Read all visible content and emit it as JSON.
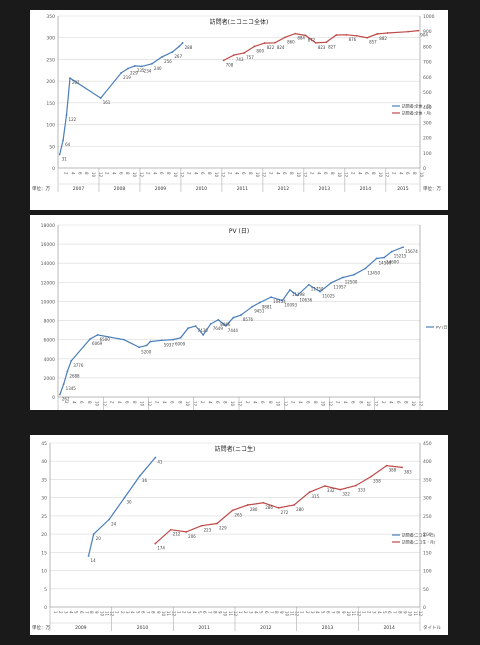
{
  "chart_data": [
    {
      "type": "line",
      "title": "訪問者(ニコニコ全体)",
      "left_axis": {
        "unit_label": "単位：万",
        "min": 0,
        "max": 350,
        "ticks": [
          0,
          50,
          100,
          150,
          200,
          250,
          300,
          350
        ]
      },
      "right_axis": {
        "unit_label": "単位：万",
        "min": 0,
        "max": 1000,
        "ticks": [
          0,
          100,
          200,
          300,
          400,
          500,
          600,
          700,
          800,
          900,
          1000
        ]
      },
      "years": [
        {
          "label": "2007",
          "months": 12
        },
        {
          "label": "2008",
          "months": 12
        },
        {
          "label": "2009",
          "months": 12
        },
        {
          "label": "2010",
          "months": 12
        },
        {
          "label": "2011",
          "months": 12
        },
        {
          "label": "2012",
          "months": 12
        },
        {
          "label": "2013",
          "months": 12
        },
        {
          "label": "2014",
          "months": 12
        },
        {
          "label": "2015",
          "months": 10
        }
      ],
      "month_tick_labels": [
        "2",
        "4",
        "6",
        "8",
        "10",
        "12"
      ],
      "series": [
        {
          "name": "訪問者(全体・日)",
          "axis": "left",
          "color": "#4a7ebb",
          "points": [
            [
              0,
              31
            ],
            [
              1,
              64
            ],
            [
              2,
              122
            ],
            [
              3,
              207
            ],
            [
              12,
              161
            ],
            [
              18,
              219
            ],
            [
              20,
              229
            ],
            [
              22,
              235
            ],
            [
              24,
              234
            ],
            [
              27,
              240
            ],
            [
              30,
              256
            ],
            [
              33,
              267
            ],
            [
              35,
              280
            ],
            [
              36,
              288
            ]
          ],
          "labels": [
            [
              0,
              "31"
            ],
            [
              1,
              "64"
            ],
            [
              2,
              "122"
            ],
            [
              3,
              "207"
            ],
            [
              12,
              "161"
            ],
            [
              18,
              "219"
            ],
            [
              20,
              "229"
            ],
            [
              22,
              "235"
            ],
            [
              24,
              "234"
            ],
            [
              27,
              "240"
            ],
            [
              30,
              "256"
            ],
            [
              33,
              "267"
            ],
            [
              36,
              "288"
            ]
          ]
        },
        {
          "name": "訪問者(全体・月)",
          "axis": "right",
          "color": "#be4b48",
          "points": [
            [
              48,
              708
            ],
            [
              51,
              743
            ],
            [
              54,
              757
            ],
            [
              57,
              800
            ],
            [
              60,
              822
            ],
            [
              63,
              824
            ],
            [
              66,
              860
            ],
            [
              69,
              884
            ],
            [
              72,
              872
            ],
            [
              75,
              823
            ],
            [
              78,
              827
            ],
            [
              81,
              875
            ],
            [
              84,
              876
            ],
            [
              87,
              870
            ],
            [
              90,
              857
            ],
            [
              93,
              882
            ],
            [
              96,
              888
            ],
            [
              102,
              897
            ],
            [
              105,
              904
            ]
          ],
          "labels": [
            [
              48,
              "708"
            ],
            [
              51,
              "743"
            ],
            [
              54,
              "757"
            ],
            [
              57,
              "800"
            ],
            [
              60,
              "822"
            ],
            [
              63,
              "824"
            ],
            [
              66,
              "860"
            ],
            [
              69,
              "884"
            ],
            [
              72,
              "872"
            ],
            [
              75,
              "823"
            ],
            [
              78,
              "827"
            ],
            [
              84,
              "876"
            ],
            [
              90,
              "857"
            ],
            [
              93,
              "882"
            ],
            [
              105,
              "904"
            ]
          ]
        }
      ]
    },
    {
      "type": "line",
      "title": "PV (日)",
      "left_axis": {
        "unit_label": "単位：万",
        "min": 0,
        "max": 18000,
        "ticks": [
          0,
          2000,
          4000,
          6000,
          8000,
          10000,
          12000,
          14000,
          16000,
          18000
        ]
      },
      "years": [
        {
          "label": "2007",
          "months": 12
        },
        {
          "label": "2008",
          "months": 12
        },
        {
          "label": "2009",
          "months": 12
        },
        {
          "label": "2010",
          "months": 12
        },
        {
          "label": "2011",
          "months": 12
        },
        {
          "label": "2012",
          "months": 12
        },
        {
          "label": "2013",
          "months": 12
        },
        {
          "label": "2014",
          "months": 12
        }
      ],
      "month_tick_labels": [
        "2",
        "4",
        "6",
        "8",
        "10",
        "12"
      ],
      "series": [
        {
          "name": "PV (日)",
          "axis": "left",
          "color": "#4a7ebb",
          "points": [
            [
              0,
              262
            ],
            [
              1,
              1345
            ],
            [
              2,
              2688
            ],
            [
              3,
              3776
            ],
            [
              8,
              6069
            ],
            [
              10,
              6500
            ],
            [
              17,
              6000
            ],
            [
              21,
              5200
            ],
            [
              23,
              5400
            ],
            [
              24,
              5800
            ],
            [
              27,
              5937
            ],
            [
              30,
              6009
            ],
            [
              32,
              6200
            ],
            [
              34,
              7200
            ],
            [
              36,
              7430
            ],
            [
              38,
              6500
            ],
            [
              40,
              7649
            ],
            [
              42,
              8066
            ],
            [
              44,
              7444
            ],
            [
              46,
              8300
            ],
            [
              48,
              8576
            ],
            [
              51,
              9451
            ],
            [
              53,
              9881
            ],
            [
              56,
              10454
            ],
            [
              59,
              10093
            ],
            [
              61,
              11198
            ],
            [
              63,
              10636
            ],
            [
              66,
              11750
            ],
            [
              69,
              11025
            ],
            [
              72,
              11957
            ],
            [
              75,
              12500
            ],
            [
              78,
              12800
            ],
            [
              81,
              13450
            ],
            [
              84,
              14500
            ],
            [
              86,
              14600
            ],
            [
              88,
              15215
            ],
            [
              91,
              15674
            ]
          ],
          "labels": [
            [
              0,
              "262"
            ],
            [
              1,
              "1345"
            ],
            [
              2,
              "2688"
            ],
            [
              3,
              "3776"
            ],
            [
              8,
              "6069"
            ],
            [
              10,
              "6500"
            ],
            [
              21,
              "5200"
            ],
            [
              27,
              "5937"
            ],
            [
              30,
              "6009"
            ],
            [
              36,
              "7430"
            ],
            [
              40,
              "7649"
            ],
            [
              42,
              "8066"
            ],
            [
              44,
              "7444"
            ],
            [
              48,
              "8576"
            ],
            [
              51,
              "9451"
            ],
            [
              53,
              "9881"
            ],
            [
              56,
              "10454"
            ],
            [
              59,
              "10093"
            ],
            [
              61,
              "11198"
            ],
            [
              63,
              "10636"
            ],
            [
              66,
              "11750"
            ],
            [
              69,
              "11025"
            ],
            [
              72,
              "11957"
            ],
            [
              75,
              "12500"
            ],
            [
              81,
              "13450"
            ],
            [
              84,
              "14500"
            ],
            [
              86,
              "14600"
            ],
            [
              88,
              "15215"
            ],
            [
              91,
              "15674"
            ]
          ]
        }
      ]
    },
    {
      "type": "line",
      "title": "訪問者(ニコ生)",
      "left_axis": {
        "unit_label": "単位：万",
        "min": 0,
        "max": 45,
        "ticks": [
          0,
          5,
          10,
          15,
          20,
          25,
          30,
          35,
          40,
          45
        ]
      },
      "right_axis": {
        "unit_label": "タイトル",
        "min": 0,
        "max": 450,
        "ticks": [
          0,
          50,
          100,
          150,
          200,
          250,
          300,
          350,
          400,
          450
        ]
      },
      "years": [
        {
          "label": "2009",
          "months": 12
        },
        {
          "label": "2010",
          "months": 12
        },
        {
          "label": "2011",
          "months": 12
        },
        {
          "label": "2012",
          "months": 12
        },
        {
          "label": "2013",
          "months": 12
        },
        {
          "label": "2014",
          "months": 12
        }
      ],
      "month_tick_labels": [
        "1",
        "2",
        "3",
        "4",
        "5",
        "6",
        "7",
        "8",
        "9",
        "10",
        "11",
        "12"
      ],
      "series": [
        {
          "name": "訪問者(ニコ生・日)",
          "axis": "left",
          "color": "#4a7ebb",
          "points": [
            [
              7,
              14
            ],
            [
              8,
              20
            ],
            [
              11,
              24
            ],
            [
              14,
              30
            ],
            [
              17,
              36
            ],
            [
              20,
              41
            ]
          ],
          "labels": [
            [
              7,
              "14"
            ],
            [
              8,
              "20"
            ],
            [
              11,
              "24"
            ],
            [
              14,
              "30"
            ],
            [
              17,
              "36"
            ],
            [
              20,
              "41"
            ]
          ]
        },
        {
          "name": "訪問者(ニコ生・月)",
          "axis": "right",
          "color": "#be4b48",
          "points": [
            [
              20,
              174
            ],
            [
              23,
              212
            ],
            [
              26,
              206
            ],
            [
              29,
              223
            ],
            [
              32,
              229
            ],
            [
              35,
              265
            ],
            [
              38,
              280
            ],
            [
              41,
              286
            ],
            [
              44,
              272
            ],
            [
              47,
              280
            ],
            [
              50,
              315
            ],
            [
              53,
              332
            ],
            [
              56,
              322
            ],
            [
              59,
              333
            ],
            [
              62,
              358
            ],
            [
              65,
              388
            ],
            [
              68,
              383
            ]
          ],
          "labels": [
            [
              20,
              "174"
            ],
            [
              23,
              "212"
            ],
            [
              26,
              "206"
            ],
            [
              29,
              "223"
            ],
            [
              32,
              "229"
            ],
            [
              35,
              "265"
            ],
            [
              38,
              "280"
            ],
            [
              41,
              "286"
            ],
            [
              44,
              "272"
            ],
            [
              47,
              "280"
            ],
            [
              50,
              "315"
            ],
            [
              53,
              "332"
            ],
            [
              56,
              "322"
            ],
            [
              59,
              "333"
            ],
            [
              62,
              "358"
            ],
            [
              65,
              "388"
            ],
            [
              68,
              "383"
            ]
          ]
        }
      ]
    }
  ]
}
